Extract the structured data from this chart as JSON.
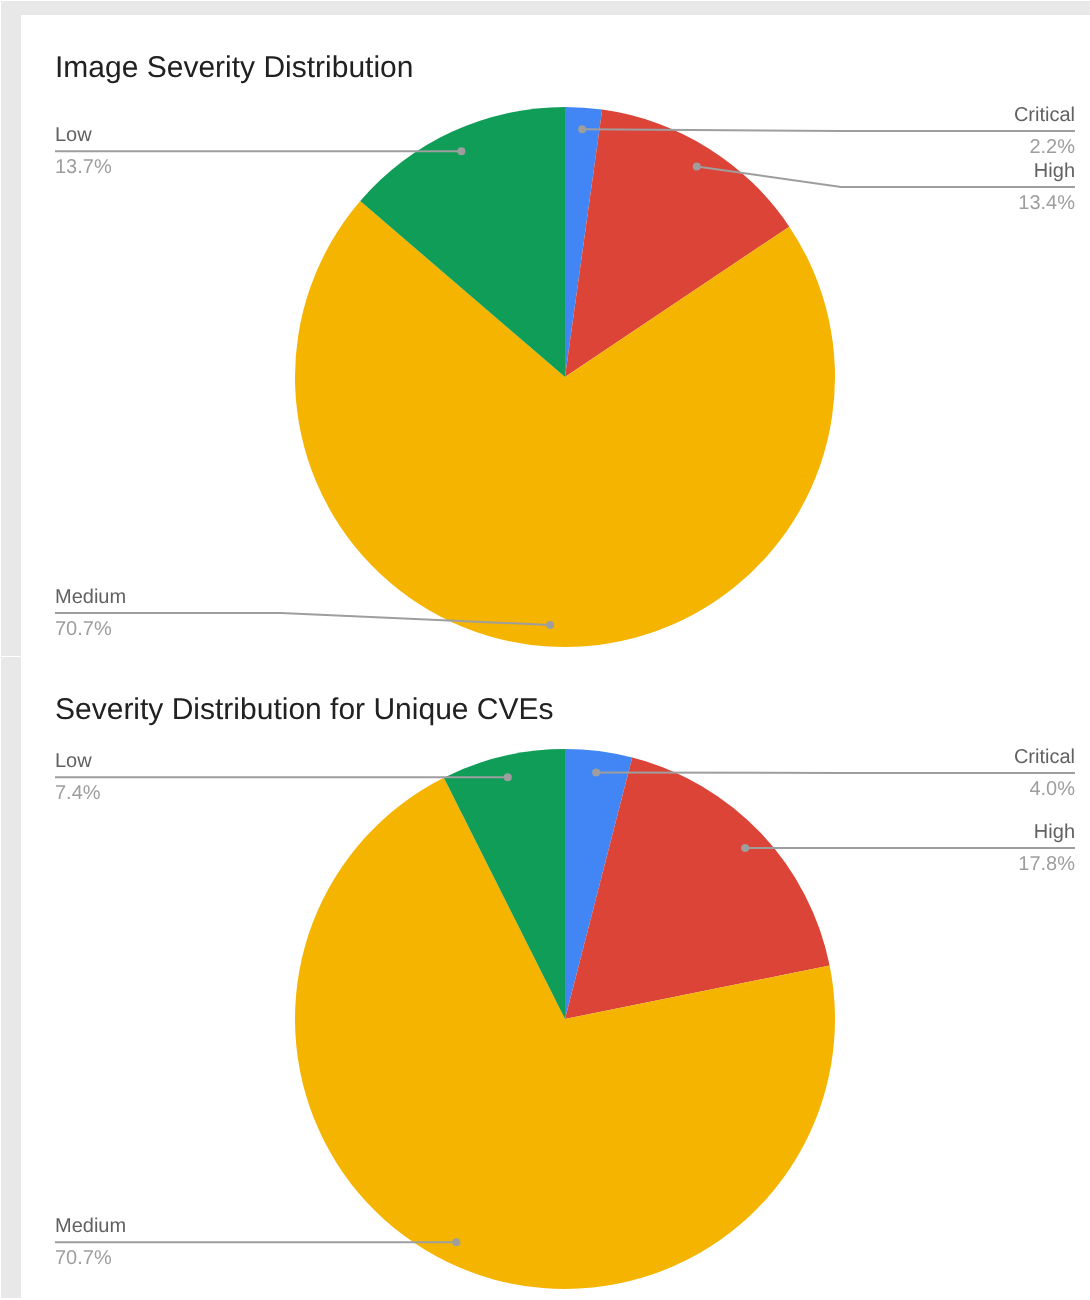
{
  "chart_data": [
    {
      "type": "pie",
      "title": "Image Severity Distribution",
      "categories": [
        "Critical",
        "High",
        "Medium",
        "Low"
      ],
      "values": [
        2.2,
        13.4,
        70.7,
        13.7
      ],
      "colors": [
        "#4285f4",
        "#db4437",
        "#f4b400",
        "#0f9d58"
      ],
      "value_labels": [
        "2.2%",
        "13.4%",
        "70.7%",
        "13.7%"
      ]
    },
    {
      "type": "pie",
      "title": "Severity Distribution for Unique CVEs",
      "categories": [
        "Critical",
        "High",
        "Medium",
        "Low"
      ],
      "values": [
        4.0,
        17.8,
        70.7,
        7.4
      ],
      "colors": [
        "#4285f4",
        "#db4437",
        "#f4b400",
        "#0f9d58"
      ],
      "value_labels": [
        "4.0%",
        "17.8%",
        "70.7%",
        "7.4%"
      ]
    }
  ]
}
